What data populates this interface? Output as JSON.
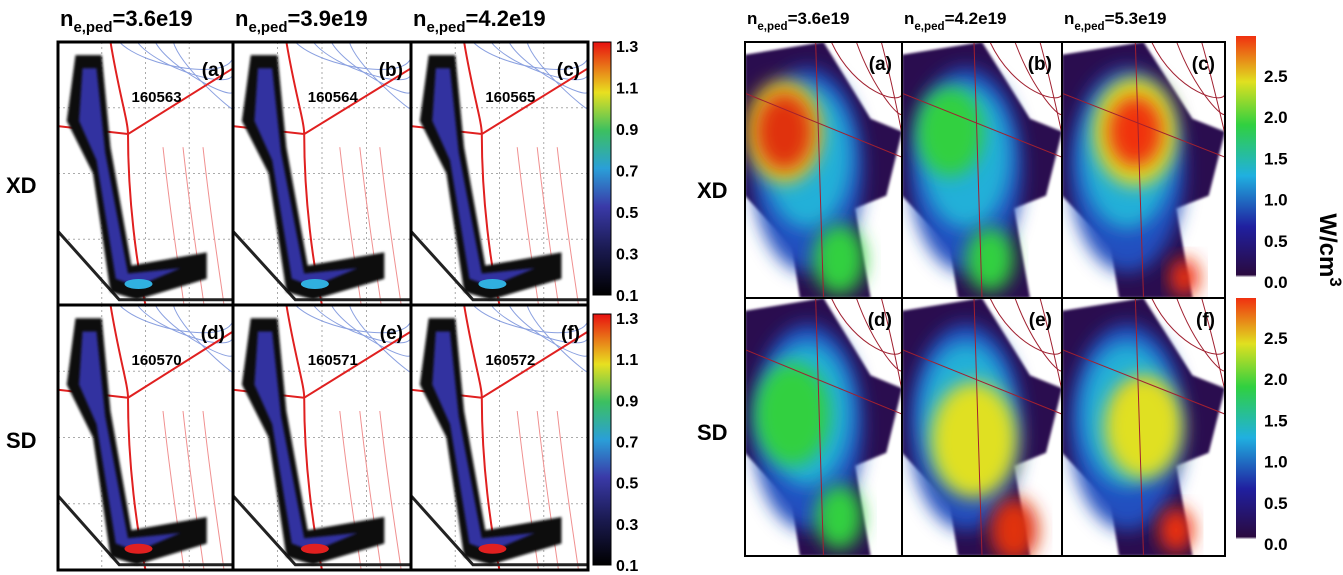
{
  "left": {
    "headers": [
      {
        "base": "n",
        "sub": "e,ped",
        "rest": "=3.6e19"
      },
      {
        "base": "n",
        "sub": "e,ped",
        "rest": "=3.9e19"
      },
      {
        "base": "n",
        "sub": "e,ped",
        "rest": "=4.2e19"
      }
    ],
    "rows": [
      "XD",
      "SD"
    ],
    "panels": [
      {
        "label": "(a)",
        "shot": "160563"
      },
      {
        "label": "(b)",
        "shot": "160564"
      },
      {
        "label": "(c)",
        "shot": "160565"
      },
      {
        "label": "(d)",
        "shot": "160570"
      },
      {
        "label": "(e)",
        "shot": "160571"
      },
      {
        "label": "(f)",
        "shot": "160572"
      }
    ],
    "colorbar_ticks": [
      "1.3",
      "1.1",
      "0.9",
      "0.7",
      "0.5",
      "0.3",
      "0.1"
    ]
  },
  "right": {
    "headers": [
      {
        "base": "n",
        "sub": "e,ped",
        "rest": "=3.6e19"
      },
      {
        "base": "n",
        "sub": "e,ped",
        "rest": "=4.2e19"
      },
      {
        "base": "n",
        "sub": "e,ped",
        "rest": "=5.3e19"
      }
    ],
    "rows": [
      "XD",
      "SD"
    ],
    "panels": [
      "(a)",
      "(b)",
      "(c)",
      "(d)",
      "(e)",
      "(f)"
    ],
    "colorbar_ticks": [
      "2.5",
      "2.0",
      "1.5",
      "1.0",
      "0.5",
      "0.0"
    ],
    "unit": {
      "base": "W/cm",
      "sup": "3"
    }
  }
}
